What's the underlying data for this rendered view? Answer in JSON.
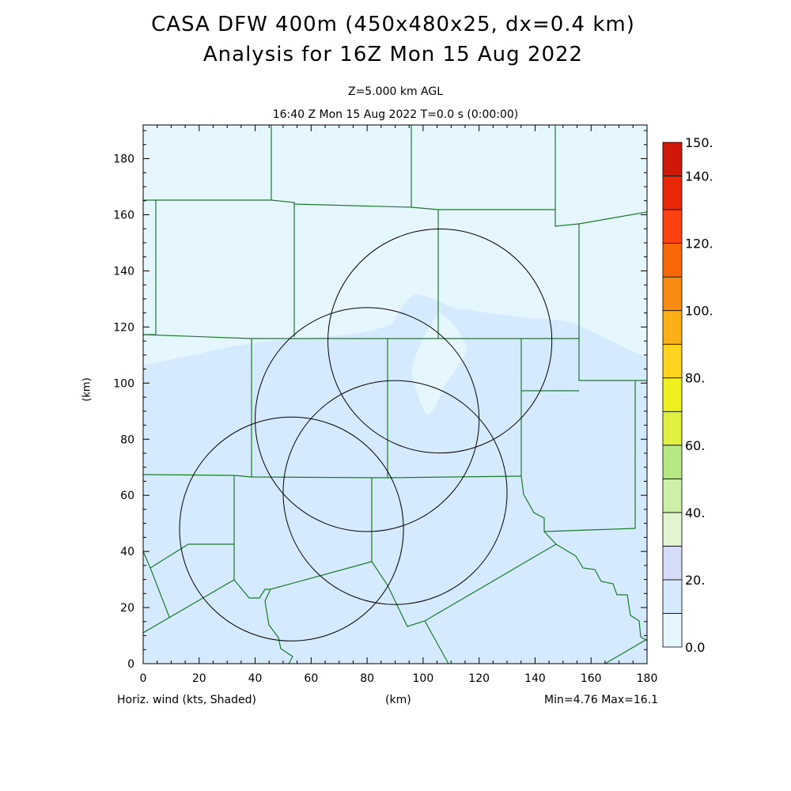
{
  "header": {
    "title_line1": "CASA DFW 400m (450x480x25, dx=0.4 km)",
    "title_line2": "Analysis for 16Z Mon 15 Aug 2022",
    "level": "Z=5.000 km AGL",
    "time": "16:40 Z Mon 15 Aug 2022    T=0.0 s (0:00:00)"
  },
  "footer": {
    "field_label": "Horiz. wind (kts, Shaded)",
    "x_unit": "(km)",
    "min_max": "Min=4.76 Max=16.1"
  },
  "colors": {
    "background_field": "#d6eaff",
    "light_field": "#e6f6ff",
    "county_lines": "#1a7a2a",
    "radar_rings": "#000000"
  },
  "chart_data": {
    "type": "heatmap",
    "title": "CASA DFW 400m (450x480x25, dx=0.4 km)",
    "xlabel": "(km)",
    "ylabel": "(km)",
    "xlim": [
      0,
      180
    ],
    "ylim": [
      0,
      192
    ],
    "x_ticks": [
      0,
      20,
      40,
      60,
      80,
      100,
      120,
      140,
      160,
      180
    ],
    "y_ticks": [
      0,
      20,
      40,
      60,
      80,
      100,
      120,
      140,
      160,
      180
    ],
    "field": "Horiz. wind (kts)",
    "min": 4.76,
    "max": 16.1,
    "colorbar": {
      "bounds": [
        0,
        10,
        20,
        30,
        40,
        50,
        60,
        70,
        80,
        90,
        100,
        110,
        120,
        130,
        140,
        150
      ],
      "colors": [
        "#e6f6ff",
        "#d6eaff",
        "#d4dcf8",
        "#e0f5d0",
        "#cdefa8",
        "#b6e884",
        "#e0f040",
        "#f0f020",
        "#ffd420",
        "#fcb018",
        "#f88c10",
        "#f86808",
        "#ff4010",
        "#e82808",
        "#d01808",
        "#b00000"
      ],
      "labels": [
        {
          "value": 0,
          "text": "0.0"
        },
        {
          "value": 20,
          "text": "20."
        },
        {
          "value": 40,
          "text": "40."
        },
        {
          "value": 60,
          "text": "60."
        },
        {
          "value": 80,
          "text": "80."
        },
        {
          "value": 100,
          "text": "100."
        },
        {
          "value": 120,
          "text": "120."
        },
        {
          "value": 140,
          "text": "140."
        },
        {
          "value": 150,
          "text": "150."
        }
      ]
    },
    "radar_rings": [
      {
        "cx": 53,
        "cy": 48,
        "r": 40
      },
      {
        "cx": 80,
        "cy": 87,
        "r": 40
      },
      {
        "cx": 90,
        "cy": 61,
        "r": 40
      },
      {
        "cx": 106,
        "cy": 115,
        "r": 40
      }
    ]
  }
}
